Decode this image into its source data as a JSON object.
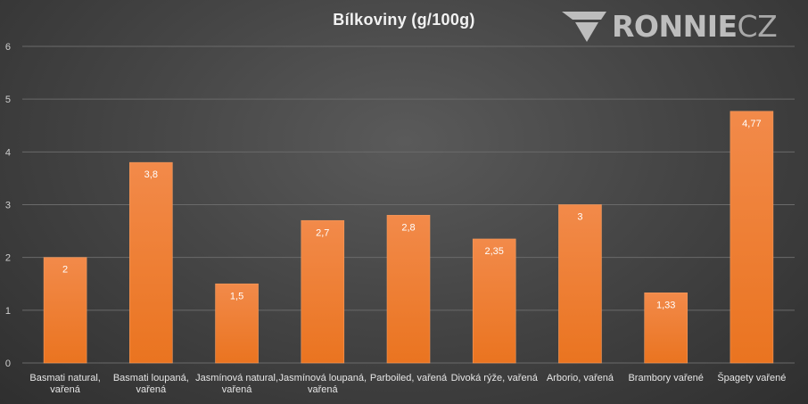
{
  "logo": {
    "text": "RONNIE",
    "suffix": "CZ"
  },
  "colors": {
    "bar_top": "#f28a4a",
    "bar_bottom": "#ea7420",
    "grid": "#6a6a6a"
  },
  "chart_data": {
    "type": "bar",
    "title": "Bílkoviny (g/100g)",
    "categories": [
      [
        "Basmati  natural,",
        "vařená"
      ],
      [
        "Basmati loupaná,",
        "vařená"
      ],
      [
        "Jasmínová natural,",
        "vařená"
      ],
      [
        "Jasmínová loupaná,",
        "vařená"
      ],
      [
        "Parboiled, vařená"
      ],
      [
        "Divoká rýže, vařená"
      ],
      [
        "Arborio, vařená"
      ],
      [
        "Brambory vařené"
      ],
      [
        "Špagety vařené"
      ]
    ],
    "values": [
      2,
      3.8,
      1.5,
      2.7,
      2.8,
      2.35,
      3,
      1.33,
      4.77
    ],
    "data_labels": [
      "2",
      "3,8",
      "1,5",
      "2,7",
      "2,8",
      "2,35",
      "3",
      "1,33",
      "4,77"
    ],
    "ylim": [
      0,
      6
    ],
    "yticks": [
      "0",
      "1",
      "2",
      "3",
      "4",
      "5",
      "6"
    ],
    "grid": true
  }
}
